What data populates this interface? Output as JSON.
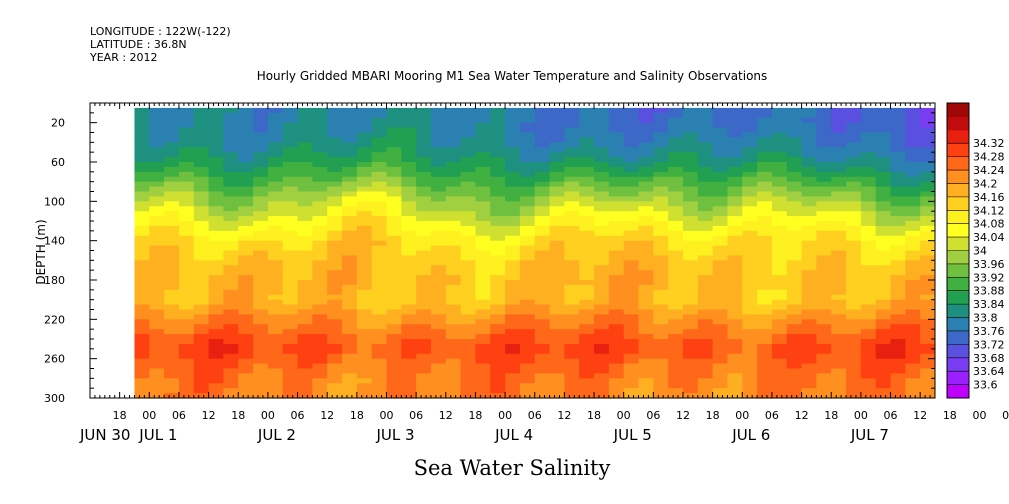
{
  "header": {
    "longitude": "LONGITUDE : 122W(-122)",
    "latitude": "LATITUDE : 36.8N",
    "year": "YEAR : 2012"
  },
  "chart_data": {
    "type": "heatmap",
    "title": "Hourly Gridded MBARI Mooring M1 Sea Water Temperature and Salinity Observations",
    "xlabel": "Sea Water Salinity",
    "ylabel": "DEPTH (m)",
    "ylim": [
      300,
      0
    ],
    "yticks": [
      20,
      60,
      100,
      140,
      180,
      220,
      260,
      300
    ],
    "xrange": [
      "2012-06-30 12:00",
      "2012-07-07 15:00"
    ],
    "data_start": "2012-06-30 21:00",
    "hour_ticks": [
      "18",
      "00",
      "06",
      "12",
      "18",
      "00",
      "06",
      "12",
      "18",
      "00",
      "06",
      "12",
      "18",
      "00",
      "06",
      "12",
      "18",
      "00",
      "06",
      "12",
      "18",
      "00",
      "06",
      "12",
      "18",
      "00",
      "06",
      "12",
      "18",
      "00",
      "06",
      "12"
    ],
    "day_labels": [
      "JUN 30",
      "JUL  1",
      "JUL  2",
      "JUL  3",
      "JUL  4",
      "JUL  5",
      "JUL  6",
      "JUL  7"
    ],
    "colorbar": {
      "min": 33.6,
      "max": 34.32,
      "step": 0.04,
      "labels": [
        "34.32",
        "34.28",
        "34.24",
        "34.2",
        "34.16",
        "34.12",
        "34.08",
        "34.04",
        "34",
        "33.96",
        "33.92",
        "33.88",
        "33.84",
        "33.8",
        "33.76",
        "33.72",
        "33.68",
        "33.64",
        "33.6"
      ],
      "colors": [
        "#c000ff",
        "#9a20ff",
        "#7a3cf0",
        "#5a50e0",
        "#3c68c8",
        "#2a80b0",
        "#1e9080",
        "#20a050",
        "#40b040",
        "#70c040",
        "#a0d040",
        "#d0e030",
        "#ffff20",
        "#fff020",
        "#ffd020",
        "#ffb020",
        "#ff9020",
        "#ff6818",
        "#ff4010",
        "#e82010",
        "#c00c0c",
        "#a00808"
      ]
    },
    "depth_profile": [
      {
        "depth": 5,
        "salinity": 33.8
      },
      {
        "depth": 20,
        "salinity": 33.8
      },
      {
        "depth": 40,
        "salinity": 33.82
      },
      {
        "depth": 60,
        "salinity": 33.86
      },
      {
        "depth": 80,
        "salinity": 33.93
      },
      {
        "depth": 100,
        "salinity": 34.0
      },
      {
        "depth": 120,
        "salinity": 34.06
      },
      {
        "depth": 140,
        "salinity": 34.12
      },
      {
        "depth": 160,
        "salinity": 34.15
      },
      {
        "depth": 180,
        "salinity": 34.17
      },
      {
        "depth": 200,
        "salinity": 34.16
      },
      {
        "depth": 220,
        "salinity": 34.22
      },
      {
        "depth": 240,
        "salinity": 34.27
      },
      {
        "depth": 250,
        "salinity": 34.29
      },
      {
        "depth": 260,
        "salinity": 34.27
      },
      {
        "depth": 280,
        "salinity": 34.24
      },
      {
        "depth": 300,
        "salinity": 34.23
      }
    ]
  }
}
